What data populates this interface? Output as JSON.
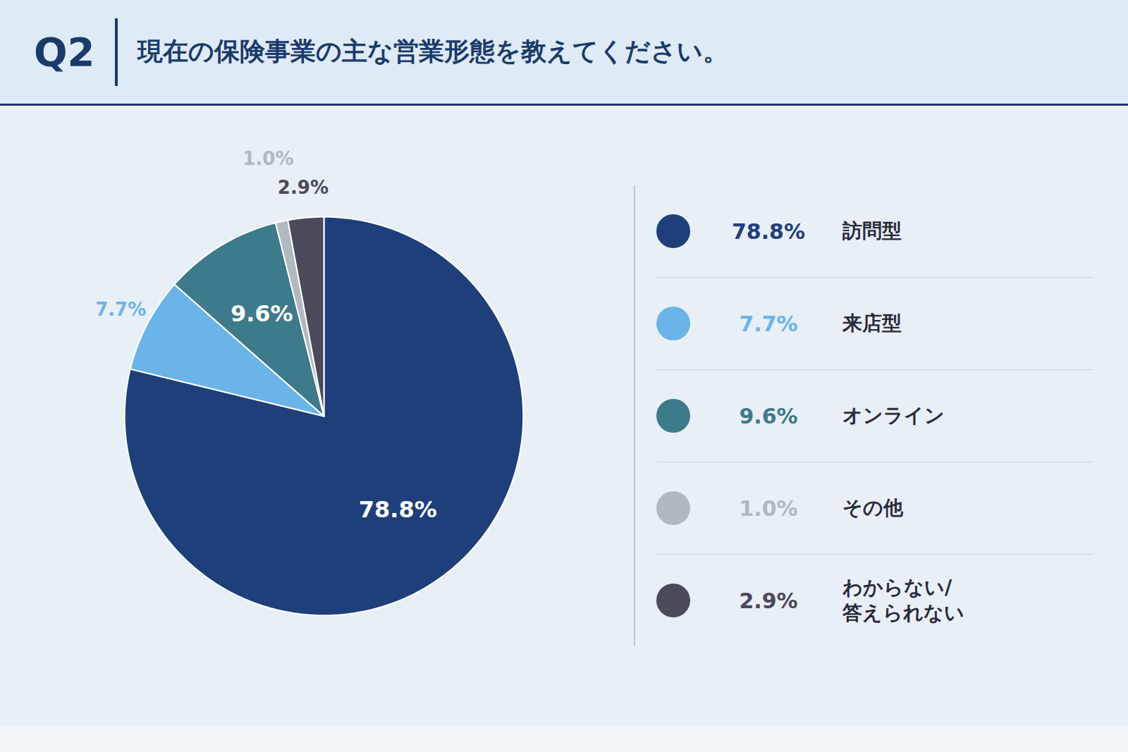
{
  "chart_data": {
    "type": "pie",
    "title": "Q2",
    "subtitle": "現在の保険事業の主な営業形態を教えてください。",
    "categories": [
      "訪問型",
      "来店型",
      "オンライン",
      "その他",
      "わからない/\n答えられない"
    ],
    "values": [
      78.8,
      7.7,
      9.6,
      1.0,
      2.9
    ],
    "value_labels": [
      "78.8%",
      "7.7%",
      "9.6%",
      "1.0%",
      "2.9%"
    ],
    "colors": [
      "#1e3f7a",
      "#6ab4e8",
      "#3d7a8a",
      "#b0b8c0",
      "#4a4a5a"
    ],
    "data_labels": true,
    "legend": "right"
  }
}
